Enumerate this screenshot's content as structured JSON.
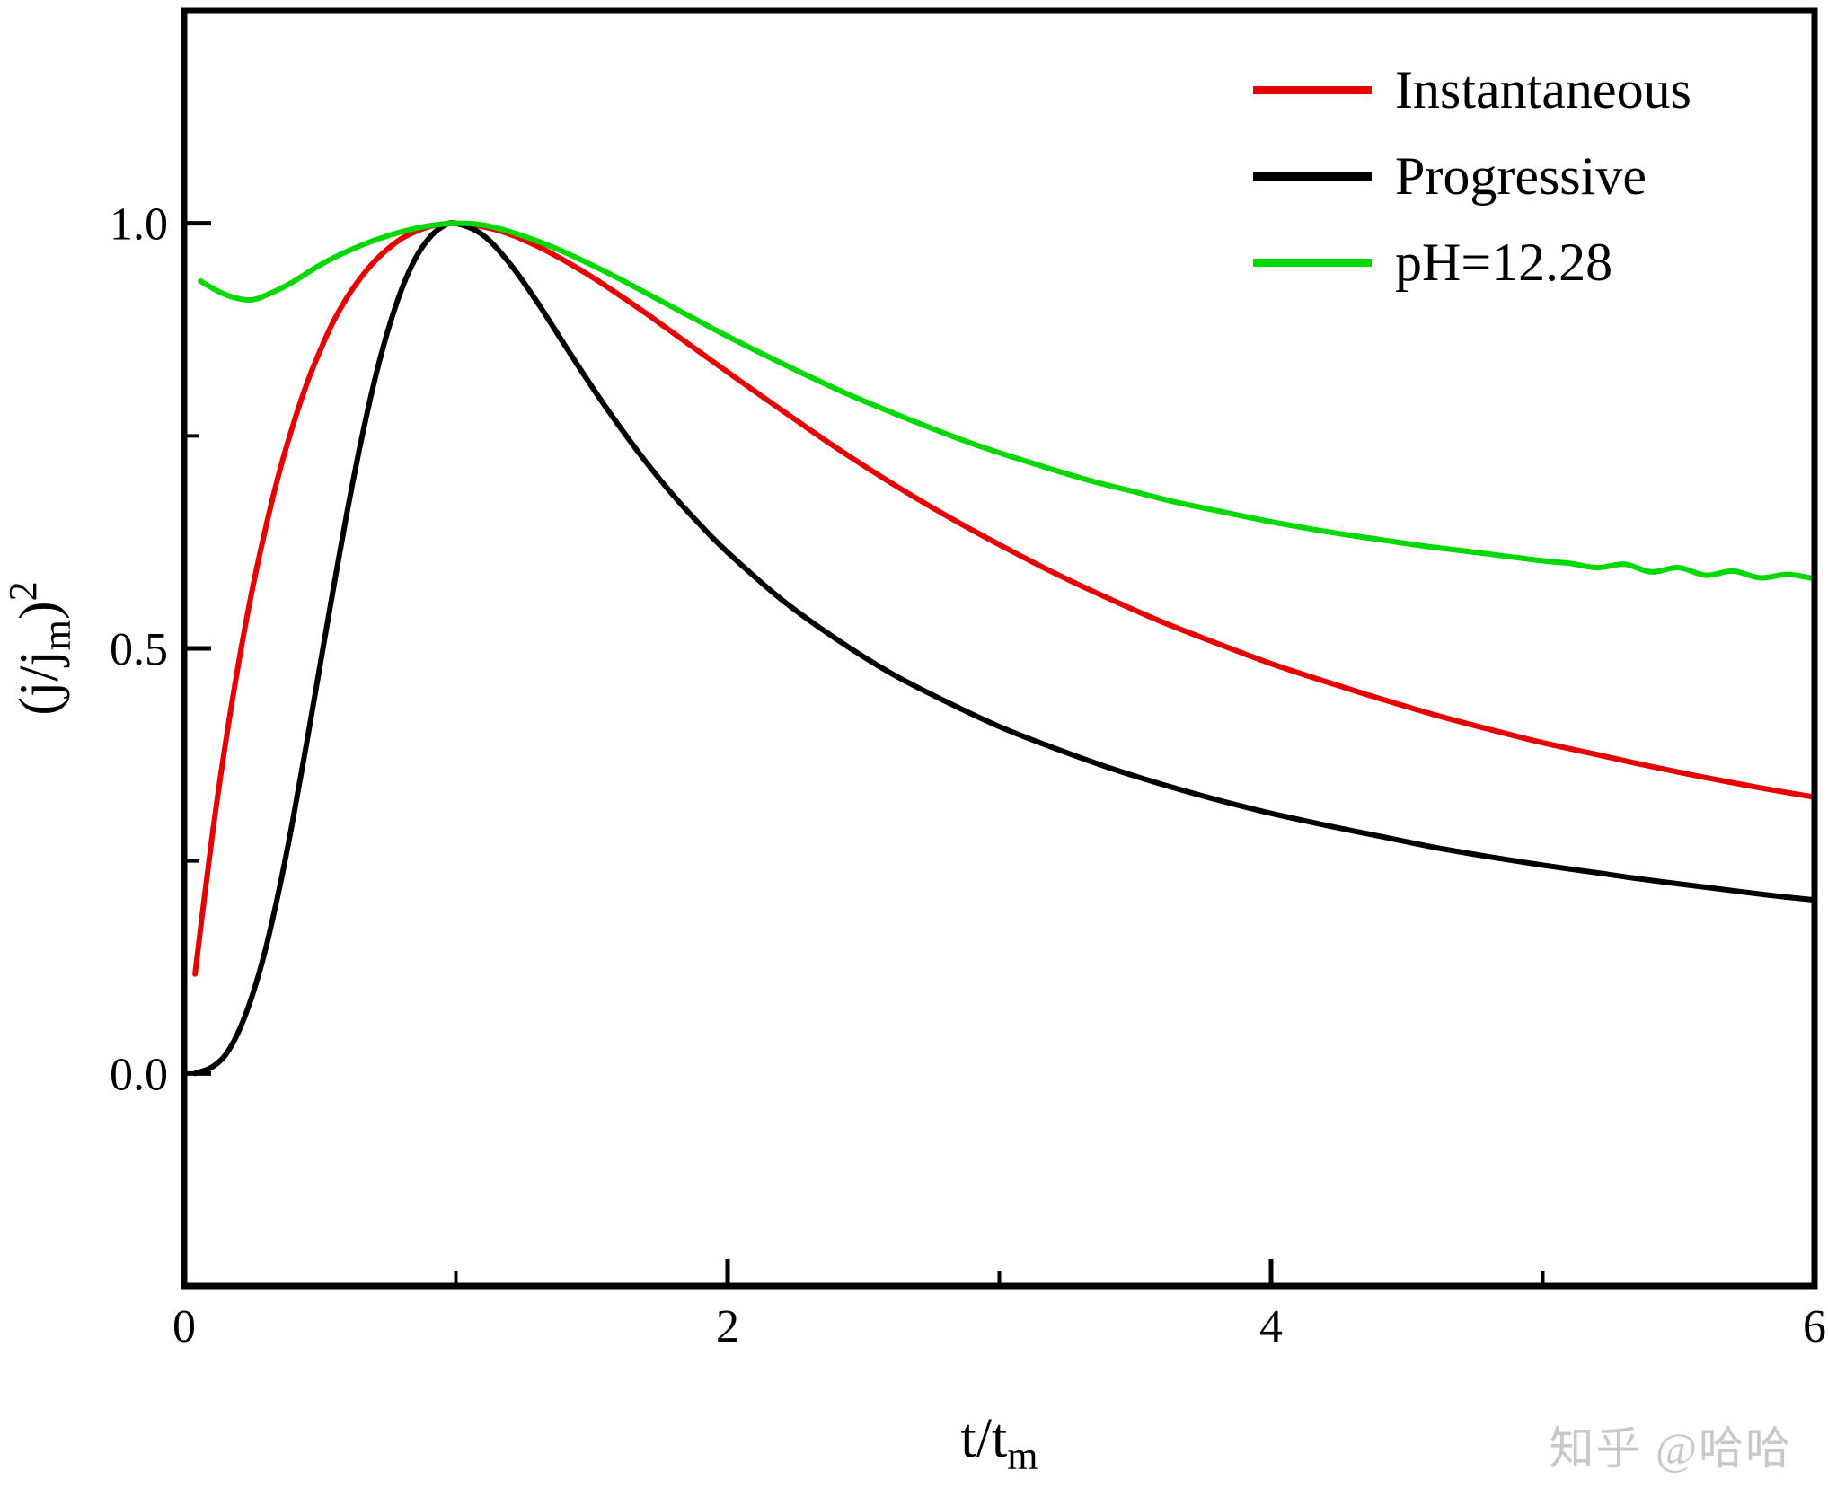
{
  "watermark": {
    "text": "知乎 @哈哈",
    "color": "#c8c8c8"
  },
  "chart_data": {
    "type": "line",
    "title": "",
    "xlabel": "t/t_m",
    "ylabel": "(j/j_m)^2",
    "xlabel_parts": {
      "main": "t/t",
      "sub": "m"
    },
    "ylabel_parts": {
      "main": "(j/j",
      "sub": "m",
      "close": ")",
      "sup": "2"
    },
    "xlim": [
      0,
      6
    ],
    "ylim": [
      -0.25,
      1.25
    ],
    "xticks": {
      "major": [
        {
          "v": 0,
          "label": "0"
        },
        {
          "v": 2,
          "label": "2"
        },
        {
          "v": 4,
          "label": "4"
        },
        {
          "v": 6,
          "label": "6"
        }
      ],
      "minor": [
        1,
        3,
        5
      ]
    },
    "yticks": {
      "major": [
        {
          "v": 0,
          "label": "0.0"
        },
        {
          "v": 0.5,
          "label": "0.5"
        },
        {
          "v": 1,
          "label": "1.0"
        }
      ],
      "minor": [
        0.25,
        0.75
      ]
    },
    "grid": false,
    "legend_position": "top-right",
    "series": [
      {
        "name": "Instantaneous",
        "color": "#e60000",
        "width": 6,
        "x": [
          0.04,
          0.1,
          0.15,
          0.2,
          0.25,
          0.3,
          0.35,
          0.4,
          0.45,
          0.5,
          0.55,
          0.6,
          0.65,
          0.7,
          0.75,
          0.8,
          0.85,
          0.9,
          0.95,
          1.0,
          1.1,
          1.2,
          1.3,
          1.4,
          1.5,
          1.6,
          1.7,
          1.8,
          1.9,
          2.0,
          2.2,
          2.4,
          2.6,
          2.8,
          3.0,
          3.2,
          3.4,
          3.6,
          3.8,
          4.0,
          4.2,
          4.4,
          4.6,
          4.8,
          5.0,
          5.2,
          5.4,
          5.6,
          5.8,
          6.0
        ],
        "y": [
          0.117,
          0.272,
          0.384,
          0.482,
          0.568,
          0.642,
          0.707,
          0.762,
          0.81,
          0.85,
          0.885,
          0.913,
          0.936,
          0.955,
          0.97,
          0.982,
          0.99,
          0.996,
          0.999,
          1.0,
          0.996,
          0.987,
          0.973,
          0.956,
          0.937,
          0.916,
          0.894,
          0.871,
          0.848,
          0.825,
          0.78,
          0.736,
          0.695,
          0.657,
          0.622,
          0.589,
          0.559,
          0.531,
          0.506,
          0.482,
          0.461,
          0.441,
          0.422,
          0.405,
          0.389,
          0.375,
          0.361,
          0.348,
          0.336,
          0.325
        ]
      },
      {
        "name": "Progressive",
        "color": "#000000",
        "width": 6,
        "x": [
          0.04,
          0.1,
          0.15,
          0.2,
          0.25,
          0.3,
          0.35,
          0.4,
          0.45,
          0.5,
          0.55,
          0.6,
          0.65,
          0.7,
          0.75,
          0.8,
          0.85,
          0.9,
          0.95,
          1.0,
          1.1,
          1.2,
          1.3,
          1.4,
          1.5,
          1.6,
          1.7,
          1.8,
          1.9,
          2.0,
          2.2,
          2.4,
          2.6,
          2.8,
          3.0,
          3.2,
          3.4,
          3.6,
          3.8,
          4.0,
          4.2,
          4.4,
          4.6,
          4.8,
          5.0,
          5.2,
          5.4,
          5.6,
          5.8,
          6.0
        ],
        "y": [
          0.0,
          0.007,
          0.021,
          0.049,
          0.091,
          0.147,
          0.217,
          0.298,
          0.387,
          0.48,
          0.572,
          0.661,
          0.742,
          0.814,
          0.874,
          0.922,
          0.958,
          0.982,
          0.996,
          1.0,
          0.986,
          0.952,
          0.907,
          0.857,
          0.808,
          0.762,
          0.719,
          0.68,
          0.645,
          0.613,
          0.557,
          0.511,
          0.471,
          0.438,
          0.408,
          0.383,
          0.36,
          0.34,
          0.322,
          0.306,
          0.292,
          0.279,
          0.266,
          0.255,
          0.245,
          0.236,
          0.227,
          0.219,
          0.211,
          0.204
        ]
      },
      {
        "name": "pH=12.28",
        "color": "#00d900",
        "width": 6,
        "x": [
          0.06,
          0.12,
          0.18,
          0.25,
          0.32,
          0.4,
          0.5,
          0.6,
          0.7,
          0.8,
          0.9,
          1.0,
          1.1,
          1.2,
          1.3,
          1.4,
          1.5,
          1.6,
          1.7,
          1.8,
          1.9,
          2.0,
          2.15,
          2.3,
          2.45,
          2.6,
          2.75,
          2.9,
          3.05,
          3.2,
          3.35,
          3.5,
          3.65,
          3.8,
          3.95,
          4.1,
          4.25,
          4.4,
          4.55,
          4.7,
          4.85,
          5.0,
          5.1,
          5.2,
          5.3,
          5.4,
          5.5,
          5.6,
          5.7,
          5.8,
          5.9,
          6.0
        ],
        "y": [
          0.932,
          0.921,
          0.913,
          0.91,
          0.918,
          0.931,
          0.951,
          0.967,
          0.98,
          0.99,
          0.997,
          1.0,
          0.998,
          0.99,
          0.979,
          0.966,
          0.951,
          0.935,
          0.918,
          0.901,
          0.884,
          0.867,
          0.843,
          0.82,
          0.798,
          0.778,
          0.759,
          0.741,
          0.725,
          0.71,
          0.696,
          0.684,
          0.672,
          0.662,
          0.652,
          0.643,
          0.635,
          0.628,
          0.621,
          0.615,
          0.609,
          0.603,
          0.6,
          0.595,
          0.599,
          0.59,
          0.595,
          0.586,
          0.591,
          0.583,
          0.587,
          0.582
        ]
      }
    ]
  }
}
